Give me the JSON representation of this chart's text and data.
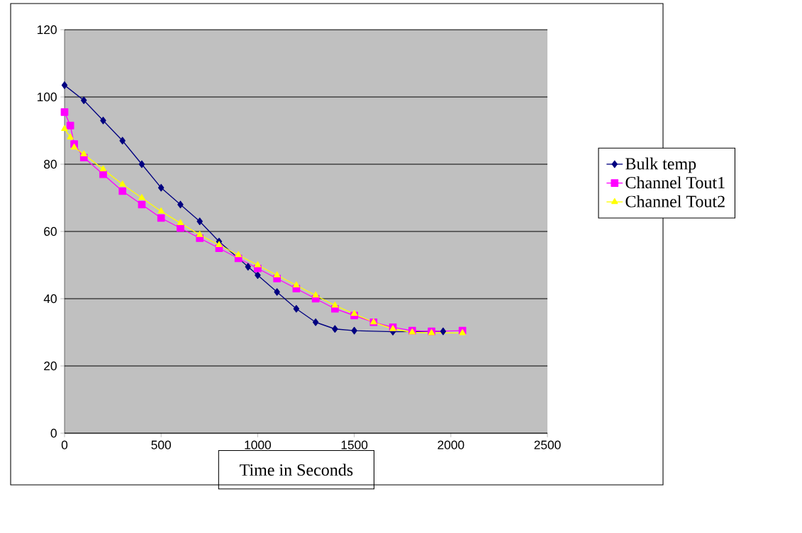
{
  "chart_data": {
    "type": "line",
    "xlabel": "Time in Seconds",
    "xlim": [
      0,
      2500
    ],
    "xticks": [
      0,
      500,
      1000,
      1500,
      2000,
      2500
    ],
    "ylim": [
      0,
      120
    ],
    "yticks": [
      0,
      20,
      40,
      60,
      80,
      100,
      120
    ],
    "grid": "y",
    "legend": "right",
    "series": [
      {
        "name": "Bulk temp",
        "color": "#000080",
        "marker": "diamond",
        "x": [
          0,
          100,
          200,
          300,
          400,
          500,
          600,
          700,
          800,
          950,
          1000,
          1100,
          1200,
          1300,
          1400,
          1500,
          1700,
          1960
        ],
        "values": [
          103.5,
          99,
          93,
          87,
          80,
          73,
          68,
          63,
          57,
          49.5,
          47,
          42,
          37,
          33,
          31,
          30.5,
          30.2,
          30.3
        ]
      },
      {
        "name": "Channel Tout1",
        "color": "#ff00ff",
        "marker": "square",
        "x": [
          0,
          30,
          50,
          100,
          200,
          300,
          400,
          500,
          600,
          700,
          800,
          900,
          1000,
          1100,
          1200,
          1300,
          1400,
          1500,
          1600,
          1700,
          1800,
          1900,
          2060
        ],
        "values": [
          95.5,
          91.5,
          86,
          82,
          77,
          72,
          68,
          64,
          61,
          58,
          55,
          52,
          49,
          46,
          43,
          40,
          37,
          35,
          33,
          31.5,
          30.5,
          30.3,
          30.5
        ]
      },
      {
        "name": "Channel Tout2",
        "color": "#ffff00",
        "marker": "triangle",
        "x": [
          0,
          30,
          50,
          100,
          200,
          300,
          400,
          500,
          600,
          700,
          800,
          900,
          1000,
          1100,
          1200,
          1300,
          1400,
          1500,
          1600,
          1700,
          1800,
          1900,
          2060
        ],
        "values": [
          90.5,
          88,
          85,
          83,
          78.5,
          74,
          70,
          66,
          62.5,
          59,
          56,
          53,
          50,
          47,
          44,
          41,
          38,
          35.5,
          33,
          31,
          30,
          29.8,
          29.8
        ]
      }
    ]
  }
}
